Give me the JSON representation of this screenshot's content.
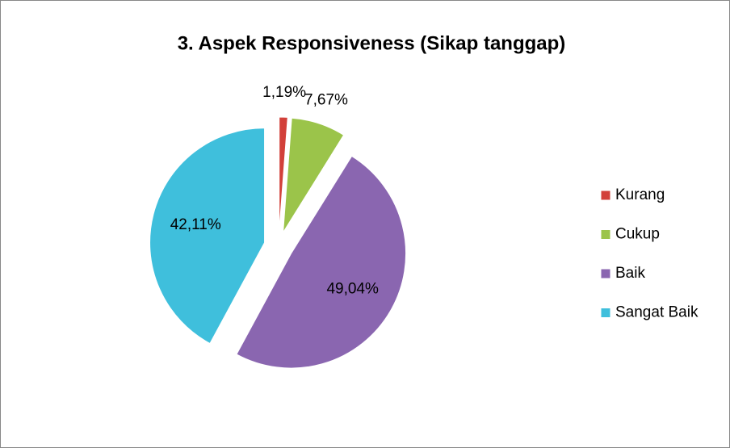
{
  "chart_data": {
    "type": "pie",
    "title": "3. Aspek Responsiveness (Sikap tanggap)",
    "categories": [
      "Kurang",
      "Cukup",
      "Baik",
      "Sangat Baik"
    ],
    "values": [
      1.19,
      7.67,
      49.04,
      42.11
    ],
    "value_labels": [
      "1,19%",
      "7,67%",
      "49,04%",
      "42,11%"
    ],
    "colors": [
      "#d2403a",
      "#9bc44a",
      "#8a66b0",
      "#3fbfdc"
    ],
    "legend": "right"
  }
}
